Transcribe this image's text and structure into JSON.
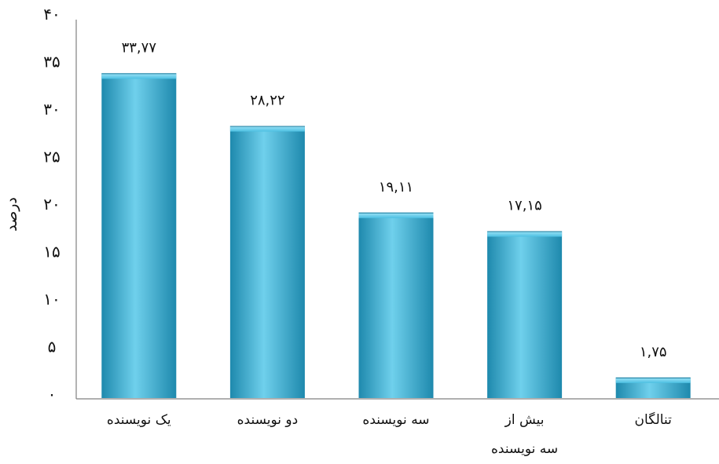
{
  "chart_data": {
    "type": "bar",
    "title": "",
    "ylabel": "درصد",
    "xlabel": "",
    "ylim": [
      0,
      40
    ],
    "grid": false,
    "legend": "none",
    "yticks": [
      0,
      5,
      10,
      15,
      20,
      25,
      30,
      35,
      40
    ],
    "ytick_labels": [
      "۰",
      "۵",
      "۱۰",
      "۱۵",
      "۲۰",
      "۲۵",
      "۳۰",
      "۳۵",
      "۴۰"
    ],
    "categories": [
      [
        "یک نویسنده"
      ],
      [
        "دو نویسنده"
      ],
      [
        "سه نویسنده"
      ],
      [
        "بیش از",
        "سه نویسنده"
      ],
      [
        "تنالگان"
      ]
    ],
    "values": [
      33.77,
      28.22,
      19.11,
      17.15,
      1.75
    ],
    "data_labels": [
      "۳۳,۷۷",
      "۲۸,۲۲",
      "۱۹,۱۱",
      "۱۷,۱۵",
      "۱,۷۵"
    ],
    "colors": {
      "bar": "#3cb6da",
      "bar_light": "#6fd0ec",
      "bar_dark": "#1e89ad",
      "axis": "#808080"
    }
  }
}
